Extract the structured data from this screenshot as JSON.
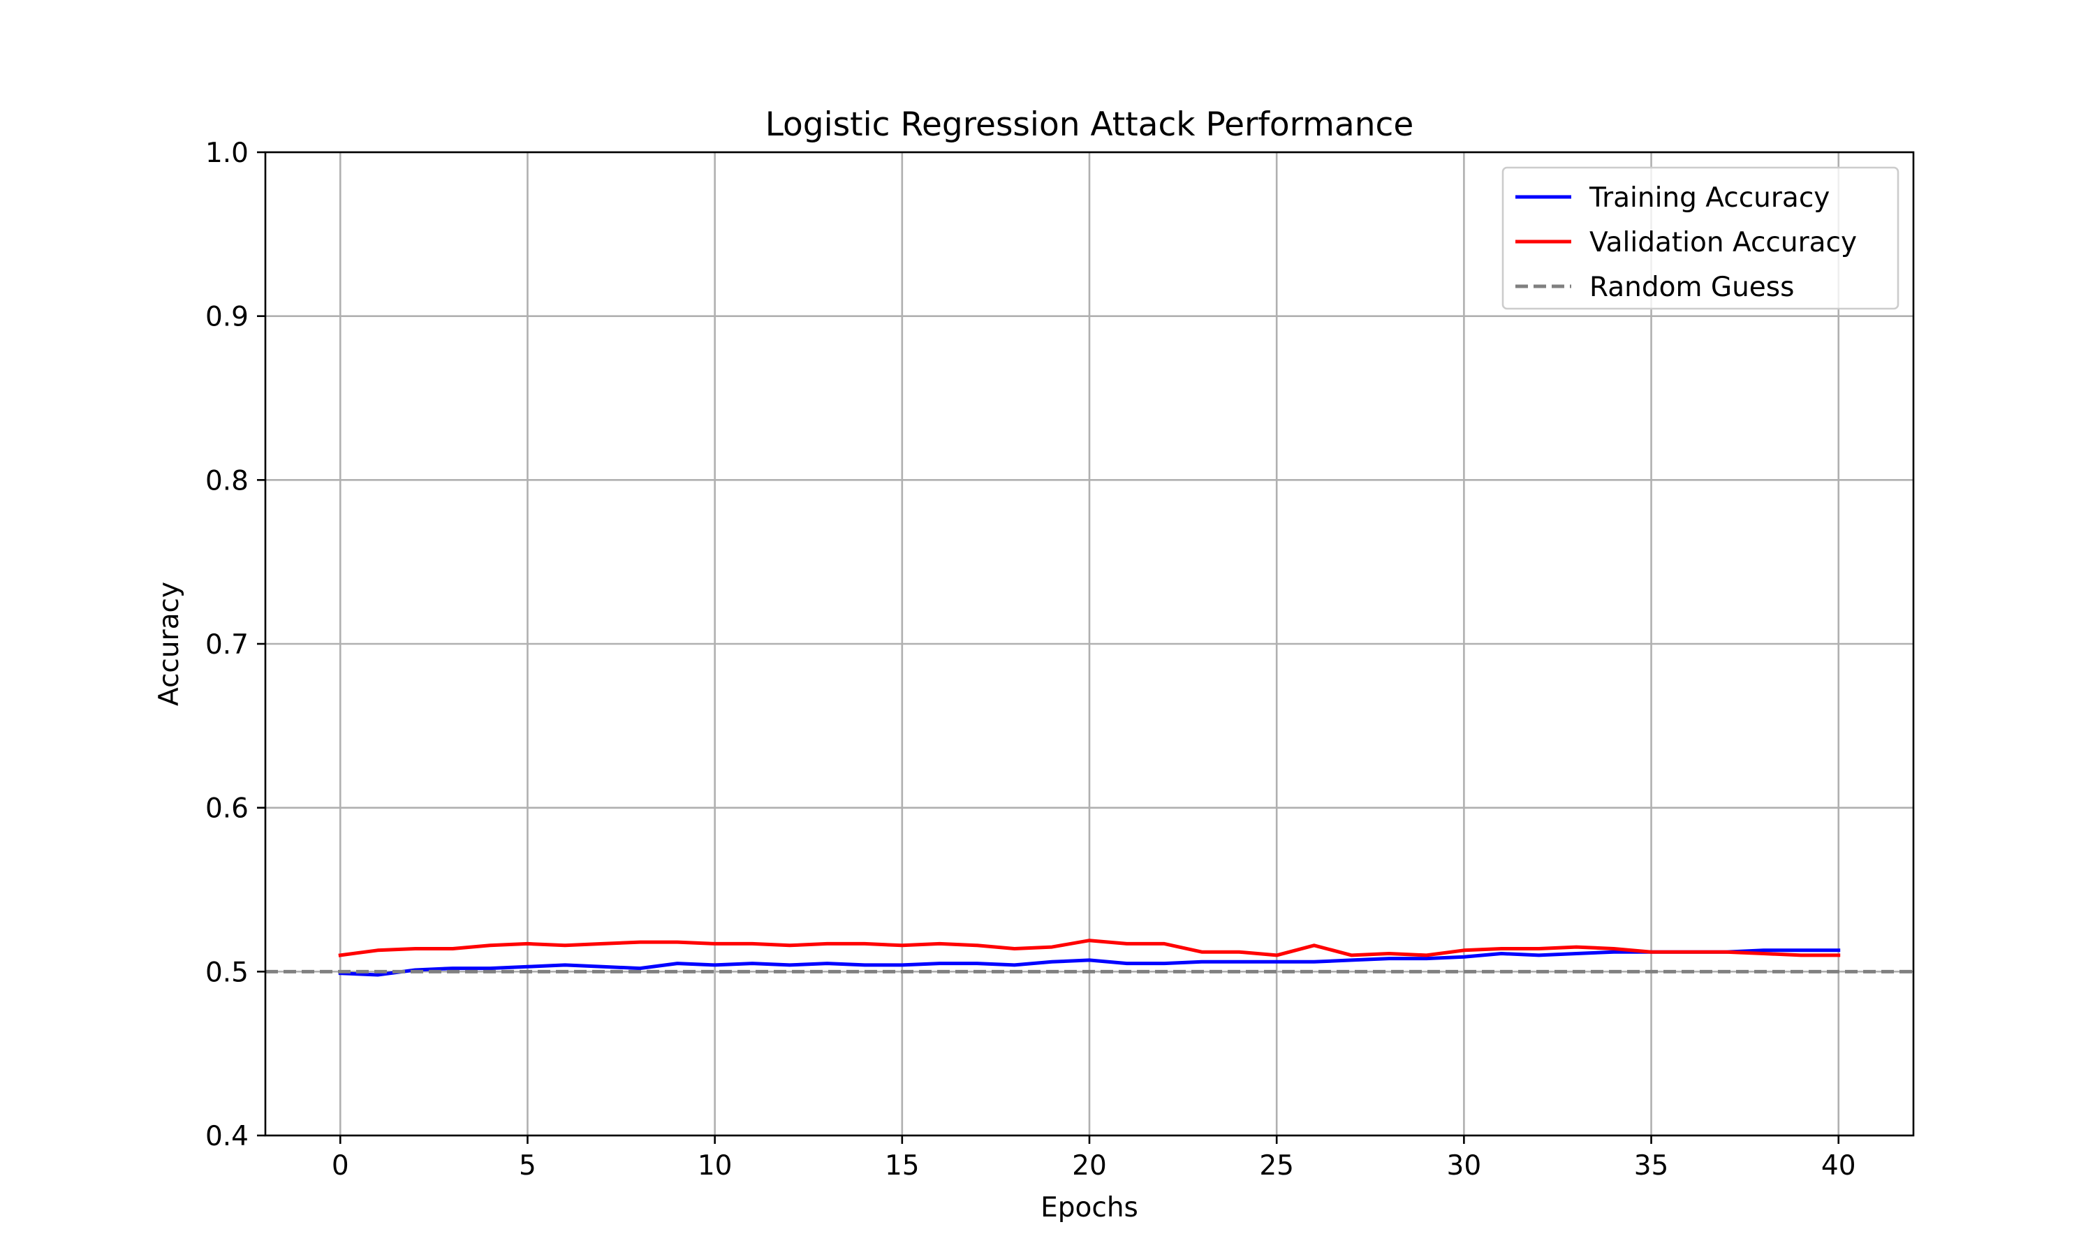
{
  "chart_data": {
    "type": "line",
    "title": "Logistic Regression Attack Performance",
    "xlabel": "Epochs",
    "ylabel": "Accuracy",
    "xlim": [
      -2,
      42
    ],
    "ylim": [
      0.4,
      1.0
    ],
    "xticks": [
      0,
      5,
      10,
      15,
      20,
      25,
      30,
      35,
      40
    ],
    "yticks": [
      0.4,
      0.5,
      0.6,
      0.7,
      0.8,
      0.9,
      1.0
    ],
    "grid": true,
    "legend_position": "top-right",
    "x": [
      0,
      1,
      2,
      3,
      4,
      5,
      6,
      7,
      8,
      9,
      10,
      11,
      12,
      13,
      14,
      15,
      16,
      17,
      18,
      19,
      20,
      21,
      22,
      23,
      24,
      25,
      26,
      27,
      28,
      29,
      30,
      31,
      32,
      33,
      34,
      35,
      36,
      37,
      38,
      39,
      40
    ],
    "series": [
      {
        "name": "Training Accuracy",
        "color": "#0000ff",
        "style": "solid",
        "values": [
          0.499,
          0.498,
          0.501,
          0.502,
          0.502,
          0.503,
          0.504,
          0.503,
          0.502,
          0.505,
          0.504,
          0.505,
          0.504,
          0.505,
          0.504,
          0.504,
          0.505,
          0.505,
          0.504,
          0.506,
          0.507,
          0.505,
          0.505,
          0.506,
          0.506,
          0.506,
          0.506,
          0.507,
          0.508,
          0.508,
          0.509,
          0.511,
          0.51,
          0.511,
          0.512,
          0.512,
          0.512,
          0.512,
          0.513,
          0.513,
          0.513
        ]
      },
      {
        "name": "Validation Accuracy",
        "color": "#ff0000",
        "style": "solid",
        "values": [
          0.51,
          0.513,
          0.514,
          0.514,
          0.516,
          0.517,
          0.516,
          0.517,
          0.518,
          0.518,
          0.517,
          0.517,
          0.516,
          0.517,
          0.517,
          0.516,
          0.517,
          0.516,
          0.514,
          0.515,
          0.519,
          0.517,
          0.517,
          0.512,
          0.512,
          0.51,
          0.516,
          0.51,
          0.511,
          0.51,
          0.513,
          0.514,
          0.514,
          0.515,
          0.514,
          0.512,
          0.512,
          0.512,
          0.511,
          0.51,
          0.51
        ]
      },
      {
        "name": "Random Guess",
        "color": "#808080",
        "style": "dashed",
        "constant": 0.5
      }
    ]
  }
}
